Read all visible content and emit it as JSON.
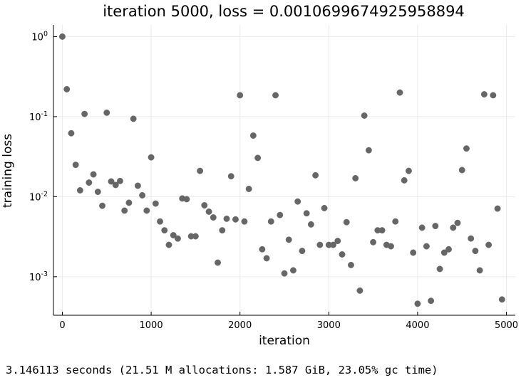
{
  "chart_data": {
    "type": "scatter",
    "title": "iteration 5000, loss = 0.0010699674925958894",
    "xlabel": "iteration",
    "ylabel": "training loss",
    "yscale": "log",
    "xlim": [
      -100,
      5100
    ],
    "ylim": [
      0.00033,
      1.4
    ],
    "xticks": [
      0,
      1000,
      2000,
      3000,
      4000,
      5000
    ],
    "xticklabels": [
      "0",
      "1000",
      "2000",
      "3000",
      "4000",
      "5000"
    ],
    "yticks": [
      1,
      0.1,
      0.01,
      0.001
    ],
    "ytick_bases": [
      "10",
      "10",
      "10",
      "10"
    ],
    "ytick_exponents": [
      "0",
      "-1",
      "-2",
      "-3"
    ],
    "grid": true,
    "legend": "none",
    "marker_color": "#666666",
    "series": [
      {
        "x": [
          0,
          50,
          100,
          150,
          200,
          250,
          300,
          350,
          400,
          450,
          500,
          550,
          600,
          650,
          700,
          750,
          800,
          850,
          900,
          950,
          1000,
          1050,
          1100,
          1150,
          1200,
          1250,
          1300,
          1350,
          1400,
          1450,
          1500,
          1550,
          1600,
          1650,
          1700,
          1750,
          1800,
          1850,
          1900,
          1950,
          2000,
          2050,
          2100,
          2150,
          2200,
          2250,
          2300,
          2350,
          2400,
          2450,
          2500,
          2550,
          2600,
          2650,
          2700,
          2750,
          2800,
          2850,
          2900,
          2950,
          3000,
          3050,
          3100,
          3150,
          3200,
          3250,
          3300,
          3350,
          3400,
          3450,
          3500,
          3550,
          3600,
          3650,
          3700,
          3750,
          3800,
          3850,
          3900,
          3950,
          4000,
          4050,
          4100,
          4150,
          4200,
          4250,
          4300,
          4350,
          4400,
          4450,
          4500,
          4550,
          4600,
          4650,
          4700,
          4750,
          4800,
          4850,
          4900,
          4950
        ],
        "y": [
          1.0,
          0.22,
          0.062,
          0.025,
          0.012,
          0.108,
          0.015,
          0.019,
          0.0115,
          0.0077,
          0.112,
          0.0155,
          0.014,
          0.0157,
          0.0067,
          0.0084,
          0.094,
          0.0137,
          0.0104,
          0.0067,
          0.031,
          0.0082,
          0.0049,
          0.0038,
          0.0025,
          0.0033,
          0.003,
          0.0095,
          0.0093,
          0.0032,
          0.0032,
          0.021,
          0.0078,
          0.0065,
          0.0055,
          0.0015,
          0.0038,
          0.0053,
          0.018,
          0.0052,
          0.185,
          0.0049,
          0.0125,
          0.058,
          0.0305,
          0.0022,
          0.0017,
          0.0049,
          0.185,
          0.0059,
          0.0011,
          0.0029,
          0.0012,
          0.0087,
          0.0021,
          0.0062,
          0.0045,
          0.0185,
          0.0025,
          0.0072,
          0.0025,
          0.0025,
          0.0028,
          0.0019,
          0.0048,
          0.0014,
          0.017,
          0.00067,
          0.103,
          0.038,
          0.0027,
          0.0038,
          0.0038,
          0.0025,
          0.0024,
          0.0049,
          0.2,
          0.016,
          0.021,
          0.002,
          0.00046,
          0.0041,
          0.0024,
          0.0005,
          0.0043,
          0.00125,
          0.002,
          0.0022,
          0.0041,
          0.0047,
          0.0215,
          0.04,
          0.003,
          0.0021,
          0.0012,
          0.19,
          0.0025,
          0.185,
          0.0071,
          0.00052
        ]
      }
    ]
  },
  "footer": {
    "timing_text": "3.146113 seconds (21.51 M allocations: 1.587 GiB, 23.05% gc time)"
  }
}
